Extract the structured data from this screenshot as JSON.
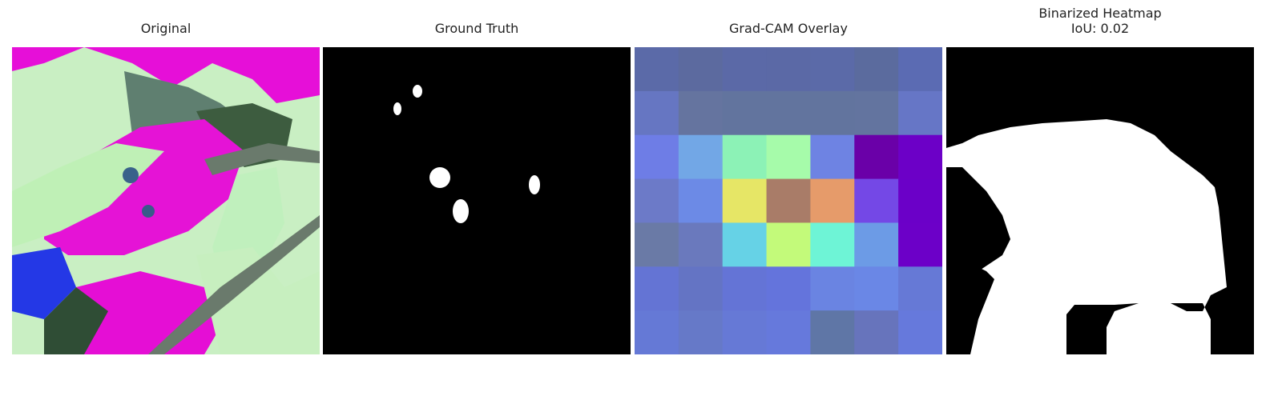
{
  "panels": {
    "original": {
      "title": "Original"
    },
    "ground_truth": {
      "title": "Ground Truth"
    },
    "gradcam": {
      "title": "Grad-CAM Overlay",
      "grid_colors": [
        [
          "#5b6aa8",
          "#5c6a9f",
          "#5b69a7",
          "#5b69a6",
          "#5b6aa8",
          "#5b6b9e",
          "#5b6bb3"
        ],
        [
          "#6676c2",
          "#65749f",
          "#62749e",
          "#62749e",
          "#62749e",
          "#63749f",
          "#6676c6"
        ],
        [
          "#6e7de6",
          "#72a7e6",
          "#8cf2b6",
          "#a6fbaa",
          "#6e83e3",
          "#6a00a8",
          "#6c00c7"
        ],
        [
          "#6c7ac8",
          "#6c8ae6",
          "#e6e666",
          "#a97c68",
          "#e69b6a",
          "#7448e6",
          "#6b00c8"
        ],
        [
          "#6a7aa6",
          "#6a79bd",
          "#66d2e6",
          "#c3fa7a",
          "#6ef4d6",
          "#6c9be6",
          "#6c00c8"
        ],
        [
          "#6474d4",
          "#6474c4",
          "#6474d6",
          "#6474dc",
          "#6a84e2",
          "#6a87e6",
          "#6679d6"
        ],
        [
          "#6579d6",
          "#6679c8",
          "#6679d6",
          "#6679dc",
          "#5f76a6",
          "#6774bc",
          "#6679dc"
        ]
      ]
    },
    "binarized": {
      "title": "Binarized Heatmap\nIoU: 0.02"
    }
  }
}
